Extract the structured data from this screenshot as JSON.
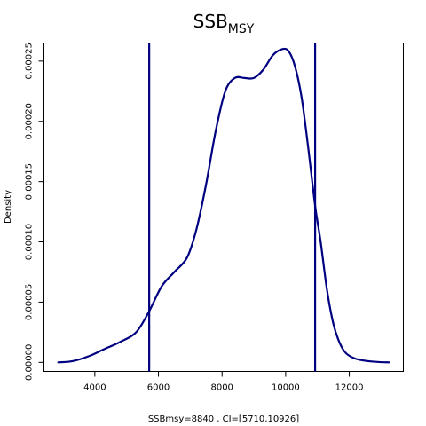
{
  "chart_data": {
    "type": "line",
    "title": "SSB",
    "title_subscript": "MSY",
    "xlabel": "SSBmsy=8840 , CI=[5710,10926]",
    "ylabel": "Density",
    "xlim": [
      2400,
      13700
    ],
    "ylim": [
      -7.5e-06,
      0.000265
    ],
    "x_ticks": [
      4000,
      6000,
      8000,
      10000,
      12000
    ],
    "x_tick_labels": [
      "4000",
      "6000",
      "8000",
      "10000",
      "12000"
    ],
    "y_ticks": [
      0,
      5e-05,
      0.0001,
      0.00015,
      0.0002,
      0.00025
    ],
    "y_tick_labels": [
      "0.00000",
      "0.00005",
      "0.00010",
      "0.00015",
      "0.00020",
      "0.00025"
    ],
    "grid": false,
    "line_color": "#000080",
    "series": [
      {
        "x": [
          2850,
          3300,
          3800,
          4300,
          4800,
          5300,
          5700,
          6100,
          6500,
          6900,
          7200,
          7500,
          7800,
          8100,
          8400,
          8700,
          9000,
          9300,
          9600,
          9900,
          10100,
          10300,
          10500,
          10700,
          10926,
          11100,
          11300,
          11500,
          11700,
          11900,
          12200,
          12600,
          13000,
          13250
        ],
        "y": [
          0.0,
          1e-06,
          5e-06,
          1.1e-05,
          1.7e-05,
          2.5e-05,
          4.2e-05,
          6.3e-05,
          7.5e-05,
          8.7e-05,
          0.000111,
          0.000148,
          0.000192,
          0.000225,
          0.000236,
          0.000236,
          0.000236,
          0.000243,
          0.000255,
          0.00026,
          0.000258,
          0.000245,
          0.00022,
          0.00018,
          0.00013,
          0.0001,
          6e-05,
          3.2e-05,
          1.6e-05,
          7.5e-06,
          3e-06,
          1e-06,
          2e-07,
          0.0
        ]
      }
    ],
    "vlines": [
      5710,
      10926
    ]
  }
}
